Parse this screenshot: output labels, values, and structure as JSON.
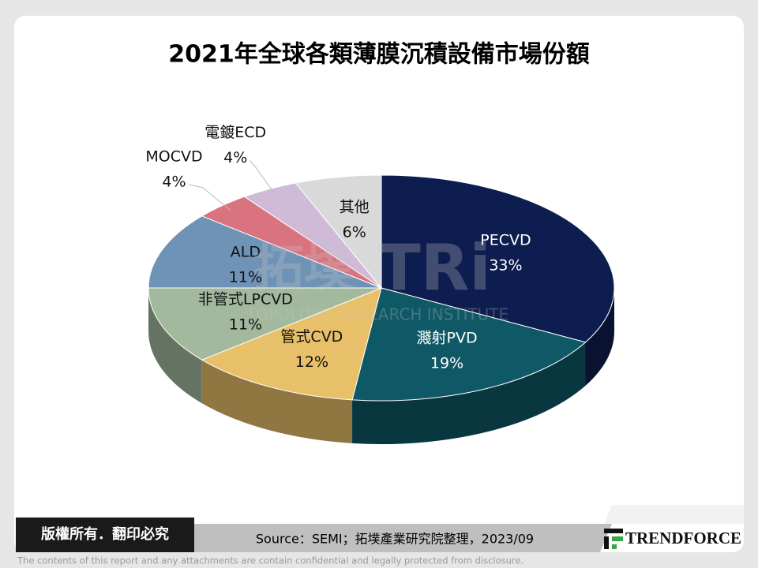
{
  "chart_data": {
    "type": "pie",
    "title": "2021年全球各類薄膜沉積設備市場份額",
    "categories": [
      "PECVD",
      "濺射PVD",
      "管式CVD",
      "非管式LPCVD",
      "ALD",
      "MOCVD",
      "電鍍ECD",
      "其他"
    ],
    "values": [
      33,
      19,
      12,
      11,
      11,
      4,
      4,
      6
    ],
    "value_labels": [
      "33%",
      "19%",
      "12%",
      "11%",
      "11%",
      "4%",
      "4%",
      "6%"
    ],
    "colors": [
      "#0e1d4f",
      "#0f5866",
      "#e8c06a",
      "#a2b99e",
      "#6f93b6",
      "#d9737f",
      "#cfbad8",
      "#d9d9d9"
    ]
  },
  "watermark": {
    "name": "拓墣",
    "logo": "TRi",
    "text": "TOPOLOGY RESEARCH INSTITUTE"
  },
  "footer": {
    "copyright": "版權所有．翻印必究",
    "source": "Source：SEMI；拓墣產業研究院整理，2023/09",
    "brand": "TRENDFORCE",
    "disclaimer": "The contents of this report and any attachments are contain confidential and legally protected from disclosure."
  }
}
